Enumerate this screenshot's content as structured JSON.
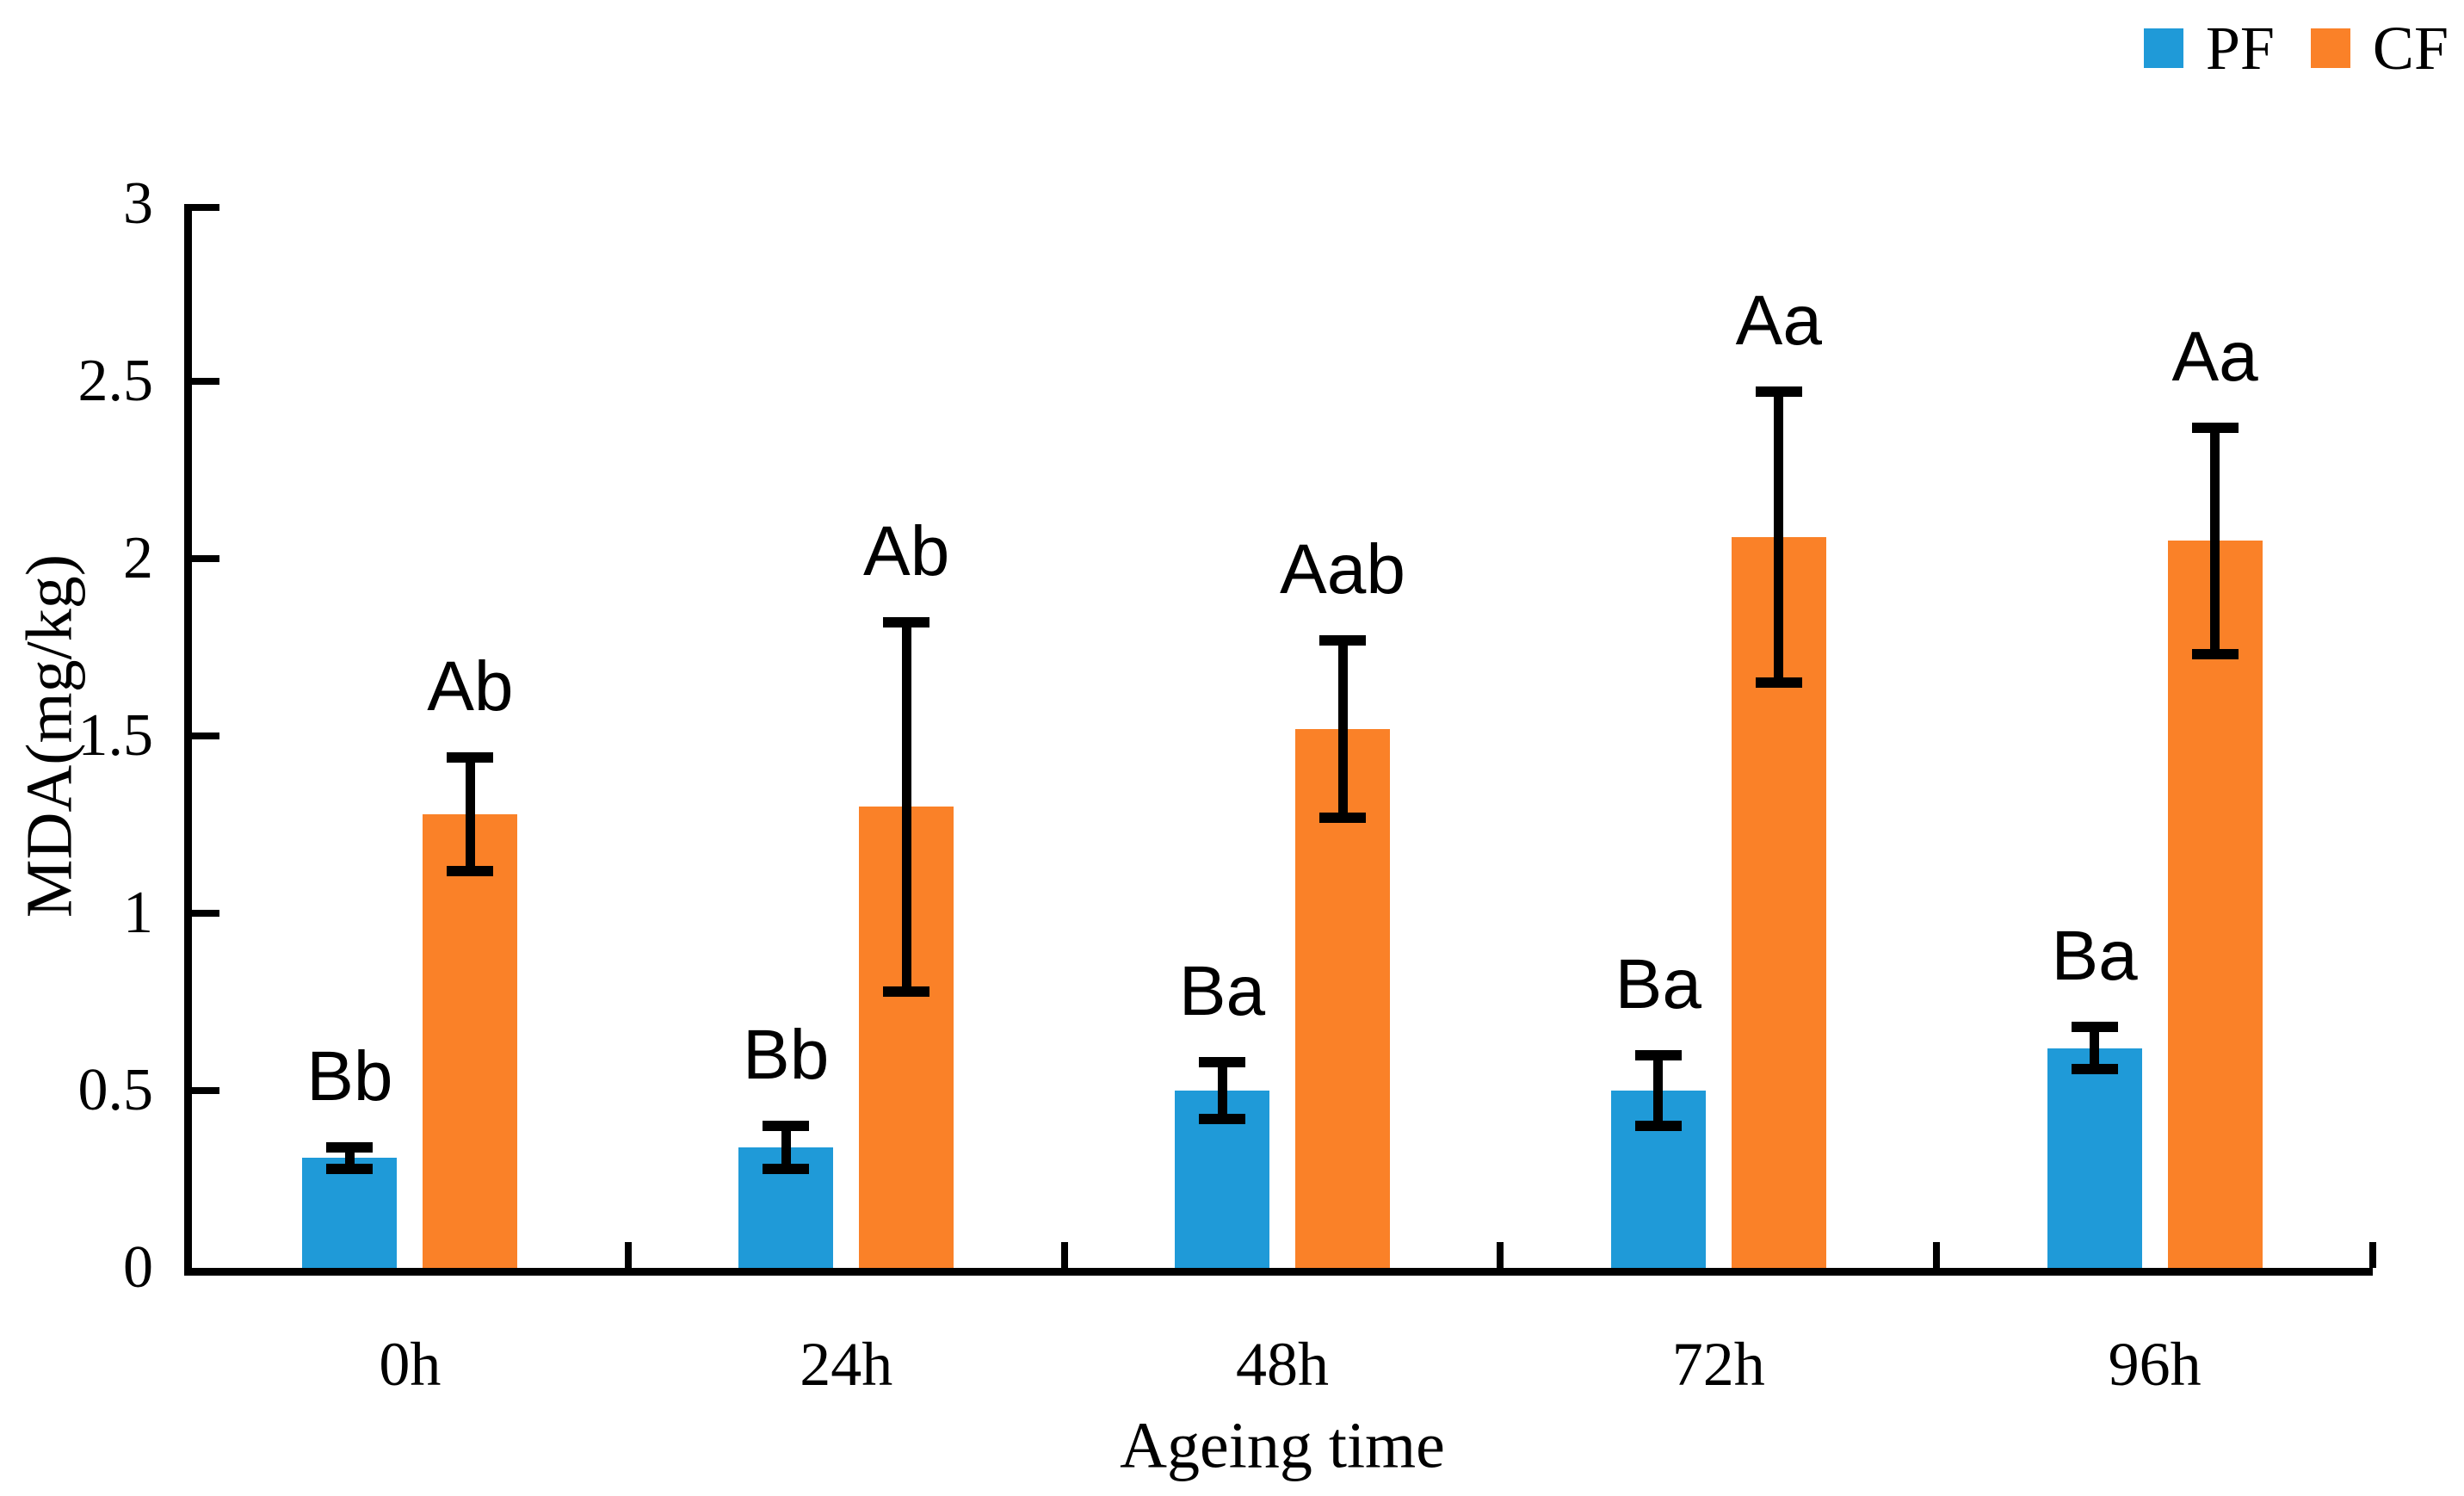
{
  "chart_data": {
    "type": "bar",
    "title": "",
    "xlabel": "Ageing time",
    "ylabel": "MDA(mg/kg)",
    "categories": [
      "0h",
      "24h",
      "48h",
      "72h",
      "96h"
    ],
    "series": [
      {
        "name": "PF",
        "color": "#1f9ad8",
        "values": [
          0.31,
          0.34,
          0.5,
          0.5,
          0.62
        ],
        "errors": [
          0.03,
          0.06,
          0.08,
          0.1,
          0.06
        ],
        "sig_labels": [
          "Bb",
          "Bb",
          "Ba",
          "Ba",
          "Ba"
        ]
      },
      {
        "name": "CF",
        "color": "#fa8128",
        "values": [
          1.28,
          1.3,
          1.52,
          2.06,
          2.05
        ],
        "errors": [
          0.16,
          0.52,
          0.25,
          0.41,
          0.32
        ],
        "sig_labels": [
          "Ab",
          "Ab",
          "Aab",
          "Aa",
          "Aa"
        ]
      }
    ],
    "ylim": [
      0,
      3
    ],
    "yticks": [
      0,
      0.5,
      1,
      1.5,
      2,
      2.5,
      3
    ],
    "ytick_labels": [
      "0",
      "0.5",
      "1",
      "1.5",
      "2",
      "2.5",
      "3"
    ],
    "grid": false,
    "error_bars": true,
    "legend_position": "top-right",
    "axis_color": "#000000",
    "text_color": "#000000"
  }
}
